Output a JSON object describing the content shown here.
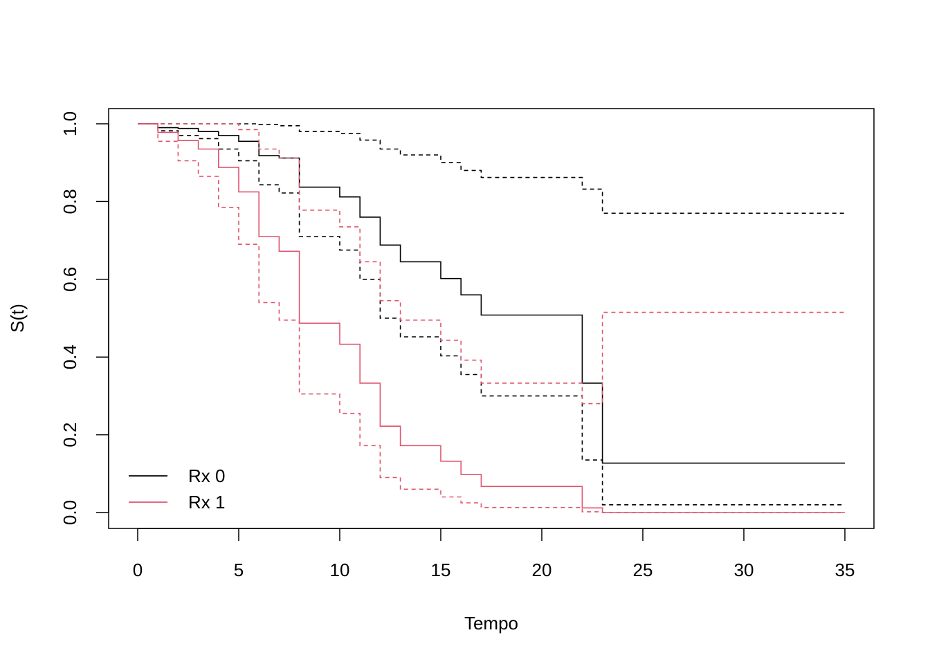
{
  "chart_data": {
    "type": "line",
    "step": true,
    "title": "",
    "xlabel": "Tempo",
    "ylabel": "S(t)",
    "xlim": [
      0,
      35
    ],
    "ylim": [
      0,
      1
    ],
    "x_ticks": [
      0,
      5,
      10,
      15,
      20,
      25,
      30,
      35
    ],
    "x_tick_labels": [
      "0",
      "5",
      "10",
      "15",
      "20",
      "25",
      "30",
      "35"
    ],
    "y_ticks": [
      0,
      0.2,
      0.4,
      0.6,
      0.8,
      1.0
    ],
    "y_tick_labels": [
      "0.0",
      "0.2",
      "0.4",
      "0.6",
      "0.8",
      "1.0"
    ],
    "grid": false,
    "legend_position": "bottom-left",
    "series": [
      {
        "name": "Rx 0",
        "color": "#000000",
        "estimate": {
          "x": [
            0,
            1,
            2,
            3,
            4,
            5,
            6,
            7,
            8,
            10,
            11,
            12,
            13,
            15,
            16,
            17,
            22,
            23,
            35
          ],
          "y": [
            1.0,
            0.99,
            0.988,
            0.98,
            0.97,
            0.955,
            0.918,
            0.912,
            0.837,
            0.812,
            0.76,
            0.688,
            0.645,
            0.602,
            0.56,
            0.508,
            0.333,
            0.127,
            0.127
          ]
        },
        "lower": {
          "x": [
            0,
            1,
            2,
            3,
            4,
            5,
            6,
            7,
            8,
            10,
            11,
            12,
            13,
            15,
            16,
            17,
            22,
            23,
            35
          ],
          "y": [
            1.0,
            0.982,
            0.97,
            0.962,
            0.935,
            0.905,
            0.843,
            0.822,
            0.71,
            0.675,
            0.6,
            0.5,
            0.452,
            0.403,
            0.355,
            0.3,
            0.135,
            0.02,
            0.02
          ]
        },
        "upper": {
          "x": [
            0,
            1,
            2,
            3,
            4,
            5,
            6,
            7,
            8,
            10,
            11,
            12,
            13,
            15,
            16,
            17,
            22,
            23,
            35
          ],
          "y": [
            1.0,
            1.0,
            1.0,
            1.0,
            1.0,
            1.0,
            0.998,
            0.995,
            0.98,
            0.975,
            0.958,
            0.935,
            0.92,
            0.9,
            0.88,
            0.862,
            0.832,
            0.77,
            0.77
          ]
        }
      },
      {
        "name": "Rx 1",
        "color": "#DF536B",
        "estimate": {
          "x": [
            0,
            1,
            2,
            3,
            4,
            5,
            6,
            7,
            8,
            10,
            11,
            12,
            13,
            15,
            16,
            17,
            22,
            23,
            35
          ],
          "y": [
            1.0,
            0.978,
            0.957,
            0.935,
            0.888,
            0.825,
            0.71,
            0.672,
            0.487,
            0.433,
            0.333,
            0.222,
            0.172,
            0.132,
            0.098,
            0.067,
            0.012,
            0.0,
            0.0
          ]
        },
        "lower": {
          "x": [
            0,
            1,
            2,
            3,
            4,
            5,
            6,
            7,
            8,
            10,
            11,
            12,
            13,
            15,
            16,
            17,
            22,
            23,
            35
          ],
          "y": [
            1.0,
            0.955,
            0.905,
            0.865,
            0.785,
            0.69,
            0.54,
            0.495,
            0.305,
            0.255,
            0.172,
            0.09,
            0.06,
            0.04,
            0.025,
            0.013,
            0.002,
            0.0,
            0.0
          ]
        },
        "upper": {
          "x": [
            0,
            1,
            2,
            3,
            4,
            5,
            6,
            7,
            8,
            10,
            11,
            12,
            13,
            15,
            16,
            17,
            22,
            23,
            35
          ],
          "y": [
            1.0,
            1.0,
            1.0,
            1.0,
            1.0,
            0.985,
            0.935,
            0.912,
            0.778,
            0.735,
            0.645,
            0.545,
            0.495,
            0.443,
            0.392,
            0.333,
            0.28,
            0.515,
            0.515
          ]
        }
      }
    ]
  }
}
